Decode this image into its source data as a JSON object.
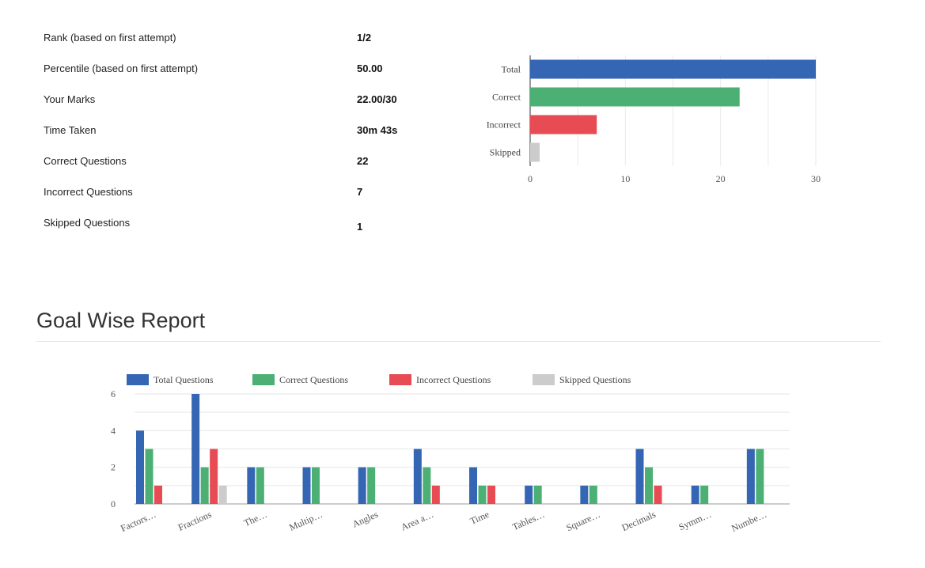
{
  "stats": [
    {
      "label": "Rank (based on first attempt)",
      "value": "1/2"
    },
    {
      "label": "Percentile (based on first attempt)",
      "value": "50.00"
    },
    {
      "label": "Your Marks",
      "value": "22.00/30"
    },
    {
      "label": "Time Taken",
      "value": "30m 43s"
    },
    {
      "label": "Correct Questions",
      "value": "22"
    },
    {
      "label": "Incorrect Questions",
      "value": "7"
    },
    {
      "label": "Skipped Questions",
      "value": "1"
    }
  ],
  "goal_report": {
    "title": "Goal Wise Report"
  },
  "colors": {
    "total": "#3566b4",
    "correct": "#4cb075",
    "incorrect": "#e74c55",
    "skipped": "#cccccc"
  },
  "chart_data": [
    {
      "type": "bar",
      "orientation": "horizontal",
      "categories": [
        "Total",
        "Correct",
        "Incorrect",
        "Skipped"
      ],
      "values": [
        30,
        22,
        7,
        1
      ],
      "xlim": [
        0,
        30
      ],
      "ticks": [
        0,
        10,
        20,
        30
      ],
      "grid": true
    },
    {
      "type": "bar",
      "title": "Goal Wise Report",
      "categories": [
        "Factors…",
        "Fractions",
        "The…",
        "Multip…",
        "Angles",
        "Area a…",
        "Time",
        "Tables…",
        "Square…",
        "Decimals",
        "Symm…",
        "Numbe…"
      ],
      "series": [
        {
          "name": "Total Questions",
          "values": [
            4,
            6,
            2,
            2,
            2,
            3,
            2,
            1,
            1,
            3,
            1,
            3
          ]
        },
        {
          "name": "Correct Questions",
          "values": [
            3,
            2,
            2,
            2,
            2,
            2,
            1,
            1,
            1,
            2,
            1,
            3
          ]
        },
        {
          "name": "Incorrect Questions",
          "values": [
            1,
            3,
            0,
            0,
            0,
            1,
            1,
            0,
            0,
            1,
            0,
            0
          ]
        },
        {
          "name": "Skipped Questions",
          "values": [
            0,
            1,
            0,
            0,
            0,
            0,
            0,
            0,
            0,
            0,
            0,
            0
          ]
        }
      ],
      "ylim": [
        0,
        6
      ],
      "ticks": [
        0,
        2,
        4,
        6
      ],
      "legend": "top",
      "grid": true
    }
  ]
}
